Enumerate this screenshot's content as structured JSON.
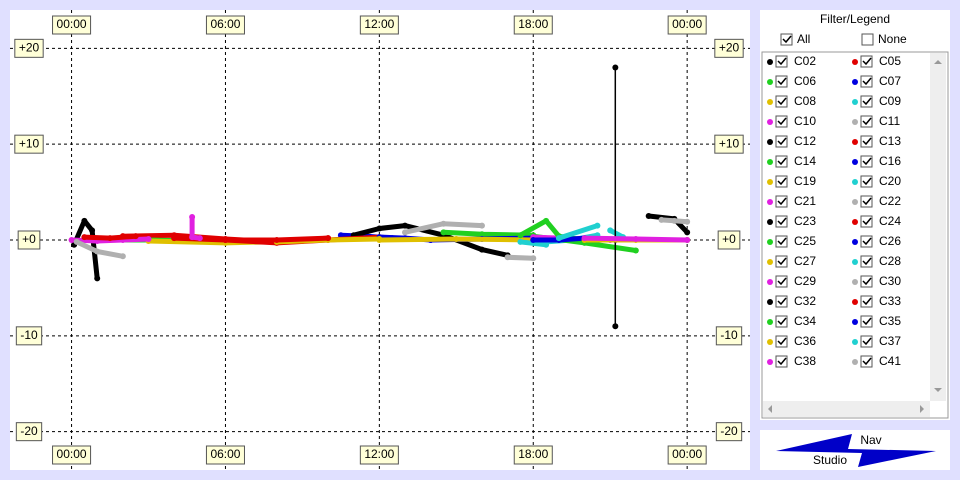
{
  "chart_data": {
    "type": "line",
    "xlim": [
      -2.4,
      26.45
    ],
    "ylim": [
      -24,
      24
    ],
    "xticks": [
      {
        "value": 0,
        "label": "00:00"
      },
      {
        "value": 6,
        "label": "06:00"
      },
      {
        "value": 12,
        "label": "12:00"
      },
      {
        "value": 18,
        "label": "18:00"
      },
      {
        "value": 24,
        "label": "00:00"
      }
    ],
    "yticks": [
      {
        "value": 20,
        "label": "+20"
      },
      {
        "value": 10,
        "label": "+10"
      },
      {
        "value": 0,
        "label": "+0"
      },
      {
        "value": -10,
        "label": "-10"
      },
      {
        "value": -20,
        "label": "-20"
      }
    ],
    "grid": true,
    "series": [
      {
        "name": "C02",
        "color": "#000000",
        "x": [
          0.1,
          0.5,
          0.8,
          1.0
        ],
        "values": [
          -0.5,
          2,
          1,
          -4
        ]
      },
      {
        "name": "C05",
        "color": "#e00000",
        "x": [
          2,
          4,
          6,
          8,
          10
        ],
        "values": [
          0.4,
          0.5,
          0.1,
          -0.2,
          0.2
        ]
      },
      {
        "name": "C06",
        "color": "#20d020",
        "x": [
          0.5,
          3,
          6
        ],
        "values": [
          0,
          0,
          -0.2
        ]
      },
      {
        "name": "C07",
        "color": "#0000e0",
        "x": [
          10.5,
          11.5,
          12.5
        ],
        "values": [
          0.5,
          0.4,
          0.2
        ]
      },
      {
        "name": "C08",
        "color": "#e0c000",
        "x": [
          3,
          6,
          9
        ],
        "values": [
          -0.1,
          -0.3,
          -0.1
        ]
      },
      {
        "name": "C09",
        "color": "#20d0d0",
        "x": [
          18.5,
          19.5,
          20.5
        ],
        "values": [
          -0.2,
          0,
          0.5
        ]
      },
      {
        "name": "C10",
        "color": "#e020e0",
        "x": [
          0,
          1,
          2,
          3
        ],
        "values": [
          0,
          -0.1,
          0,
          0.1
        ]
      },
      {
        "name": "C11",
        "color": "#b0b0b0",
        "x": [
          0.2,
          1,
          2
        ],
        "values": [
          -0.2,
          -1.2,
          -1.7
        ]
      },
      {
        "name": "C12",
        "color": "#000000",
        "x": [
          11,
          12,
          13,
          14.5,
          16,
          17
        ],
        "values": [
          0.5,
          1.2,
          1.5,
          0.5,
          -1,
          -1.6
        ]
      },
      {
        "name": "C13",
        "color": "#e00000",
        "x": [
          4,
          6,
          8,
          10,
          12
        ],
        "values": [
          0.2,
          0,
          -0.3,
          0,
          0.3
        ]
      },
      {
        "name": "C14",
        "color": "#20d020",
        "x": [
          14.5,
          16,
          18
        ],
        "values": [
          0.8,
          0.6,
          0.5
        ]
      },
      {
        "name": "C16",
        "color": "#0000e0",
        "x": [
          12,
          13,
          14
        ],
        "values": [
          0.3,
          0.2,
          0
        ]
      },
      {
        "name": "C19",
        "color": "#e0c000",
        "x": [
          8,
          10,
          12
        ],
        "values": [
          -0.2,
          0,
          0.1
        ]
      },
      {
        "name": "C20",
        "color": "#20d0d0",
        "x": [
          21,
          21.5
        ],
        "values": [
          1,
          0.3
        ]
      },
      {
        "name": "C21",
        "color": "#e020e0",
        "x": [
          4.7,
          4.7,
          5
        ],
        "values": [
          2.4,
          0.3,
          0.2
        ]
      },
      {
        "name": "C22",
        "color": "#b0b0b0",
        "x": [
          13,
          14.5,
          16
        ],
        "values": [
          0.8,
          1.7,
          1.5
        ]
      },
      {
        "name": "C23",
        "color": "#000000",
        "x": [
          22.5,
          23.5,
          24
        ],
        "values": [
          2.5,
          2.2,
          0.8
        ]
      },
      {
        "name": "C24",
        "color": "#e00000",
        "x": [
          0.5,
          1.5,
          2.5
        ],
        "values": [
          0.3,
          0.2,
          0.4
        ]
      },
      {
        "name": "C25",
        "color": "#20d020",
        "x": [
          18,
          20,
          22
        ],
        "values": [
          0.4,
          -0.3,
          -1.1
        ]
      },
      {
        "name": "C26",
        "color": "#0000e0",
        "x": [
          14,
          16,
          18
        ],
        "values": [
          0,
          0.1,
          0.2
        ]
      },
      {
        "name": "C27",
        "color": "#e0c000",
        "x": [
          12,
          15,
          18
        ],
        "values": [
          0,
          0.1,
          0
        ]
      },
      {
        "name": "C28",
        "color": "#20d0d0",
        "x": [
          17.5,
          18.5
        ],
        "values": [
          -0.2,
          -0.5
        ]
      },
      {
        "name": "C29",
        "color": "#e020e0",
        "x": [
          18,
          21,
          24
        ],
        "values": [
          0.3,
          0,
          0
        ]
      },
      {
        "name": "C30",
        "color": "#b0b0b0",
        "x": [
          17,
          18
        ],
        "values": [
          -1.8,
          -1.9
        ]
      },
      {
        "name": "C32",
        "color": "#000000",
        "x": [
          21.2,
          21.2,
          21.2
        ],
        "values": [
          -9,
          0,
          18
        ]
      },
      {
        "name": "C33",
        "color": "#e00000",
        "x": [
          6,
          8,
          10
        ],
        "values": [
          0,
          0,
          0.2
        ]
      },
      {
        "name": "C34",
        "color": "#20d020",
        "x": [
          17.5,
          18.5,
          19,
          20
        ],
        "values": [
          0.5,
          2,
          0.4,
          0
        ]
      },
      {
        "name": "C35",
        "color": "#0000e0",
        "x": [
          18,
          19,
          20
        ],
        "values": [
          0,
          0,
          0.2
        ]
      },
      {
        "name": "C36",
        "color": "#e0c000",
        "x": [
          20,
          22,
          24
        ],
        "values": [
          0,
          0,
          0
        ]
      },
      {
        "name": "C37",
        "color": "#20d0d0",
        "x": [
          19,
          20.5
        ],
        "values": [
          0.2,
          1.5
        ]
      },
      {
        "name": "C38",
        "color": "#e020e0",
        "x": [
          20,
          22,
          24
        ],
        "values": [
          0.2,
          0.1,
          0
        ]
      },
      {
        "name": "C41",
        "color": "#b0b0b0",
        "x": [
          23,
          23.5,
          24
        ],
        "values": [
          2.1,
          2,
          1.9
        ]
      }
    ]
  },
  "legend_panel": {
    "title": "Filter/Legend",
    "all": "All",
    "none": "None"
  },
  "nav_panel": {
    "nav": "Nav",
    "studio": "Studio"
  }
}
